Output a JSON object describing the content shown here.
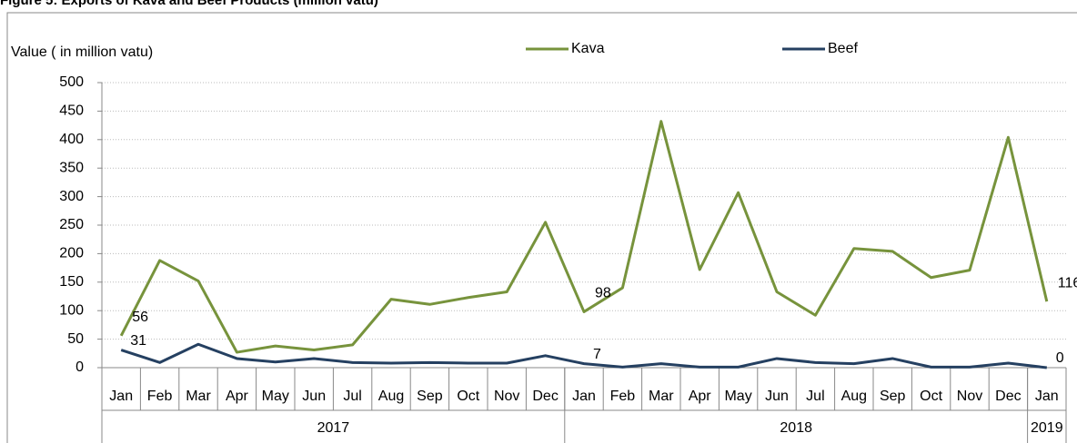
{
  "chart_data": {
    "type": "line",
    "title": "Figure 5: Exports of Kava and Beef Products (million vatu)",
    "y_label": "Value ( in million vatu)",
    "categories": [
      "Jan",
      "Feb",
      "Mar",
      "Apr",
      "May",
      "Jun",
      "Jul",
      "Aug",
      "Sep",
      "Oct",
      "Nov",
      "Dec",
      "Jan",
      "Feb",
      "Mar",
      "Apr",
      "May",
      "Jun",
      "Jul",
      "Aug",
      "Sep",
      "Oct",
      "Nov",
      "Dec",
      "Jan"
    ],
    "category_groups": [
      {
        "label": "2017",
        "count": 12
      },
      {
        "label": "2018",
        "count": 12
      },
      {
        "label": "2019",
        "count": 1
      }
    ],
    "series": [
      {
        "name": "Kava",
        "color": "#77933c",
        "values": [
          56,
          188,
          152,
          27,
          38,
          31,
          40,
          120,
          111,
          123,
          133,
          255,
          98,
          140,
          432,
          172,
          307,
          133,
          92,
          209,
          204,
          158,
          171,
          404,
          116
        ],
        "value_labels": [
          "56",
          null,
          null,
          null,
          null,
          null,
          null,
          null,
          null,
          null,
          null,
          null,
          "98",
          null,
          null,
          null,
          null,
          null,
          null,
          null,
          null,
          null,
          null,
          null,
          "116"
        ]
      },
      {
        "name": "Beef",
        "color": "#254061",
        "values": [
          31,
          9,
          41,
          16,
          10,
          16,
          9,
          8,
          9,
          8,
          8,
          21,
          7,
          1,
          7,
          1,
          1,
          16,
          9,
          7,
          16,
          1,
          1,
          8,
          0
        ],
        "value_labels": [
          "31",
          null,
          null,
          null,
          null,
          null,
          null,
          null,
          null,
          null,
          null,
          null,
          "7",
          null,
          null,
          null,
          null,
          null,
          null,
          null,
          null,
          null,
          null,
          null,
          "0"
        ]
      }
    ],
    "ylim": [
      0,
      500
    ],
    "yticks": [
      0,
      50,
      100,
      150,
      200,
      250,
      300,
      350,
      400,
      450,
      500
    ],
    "grid": true
  }
}
